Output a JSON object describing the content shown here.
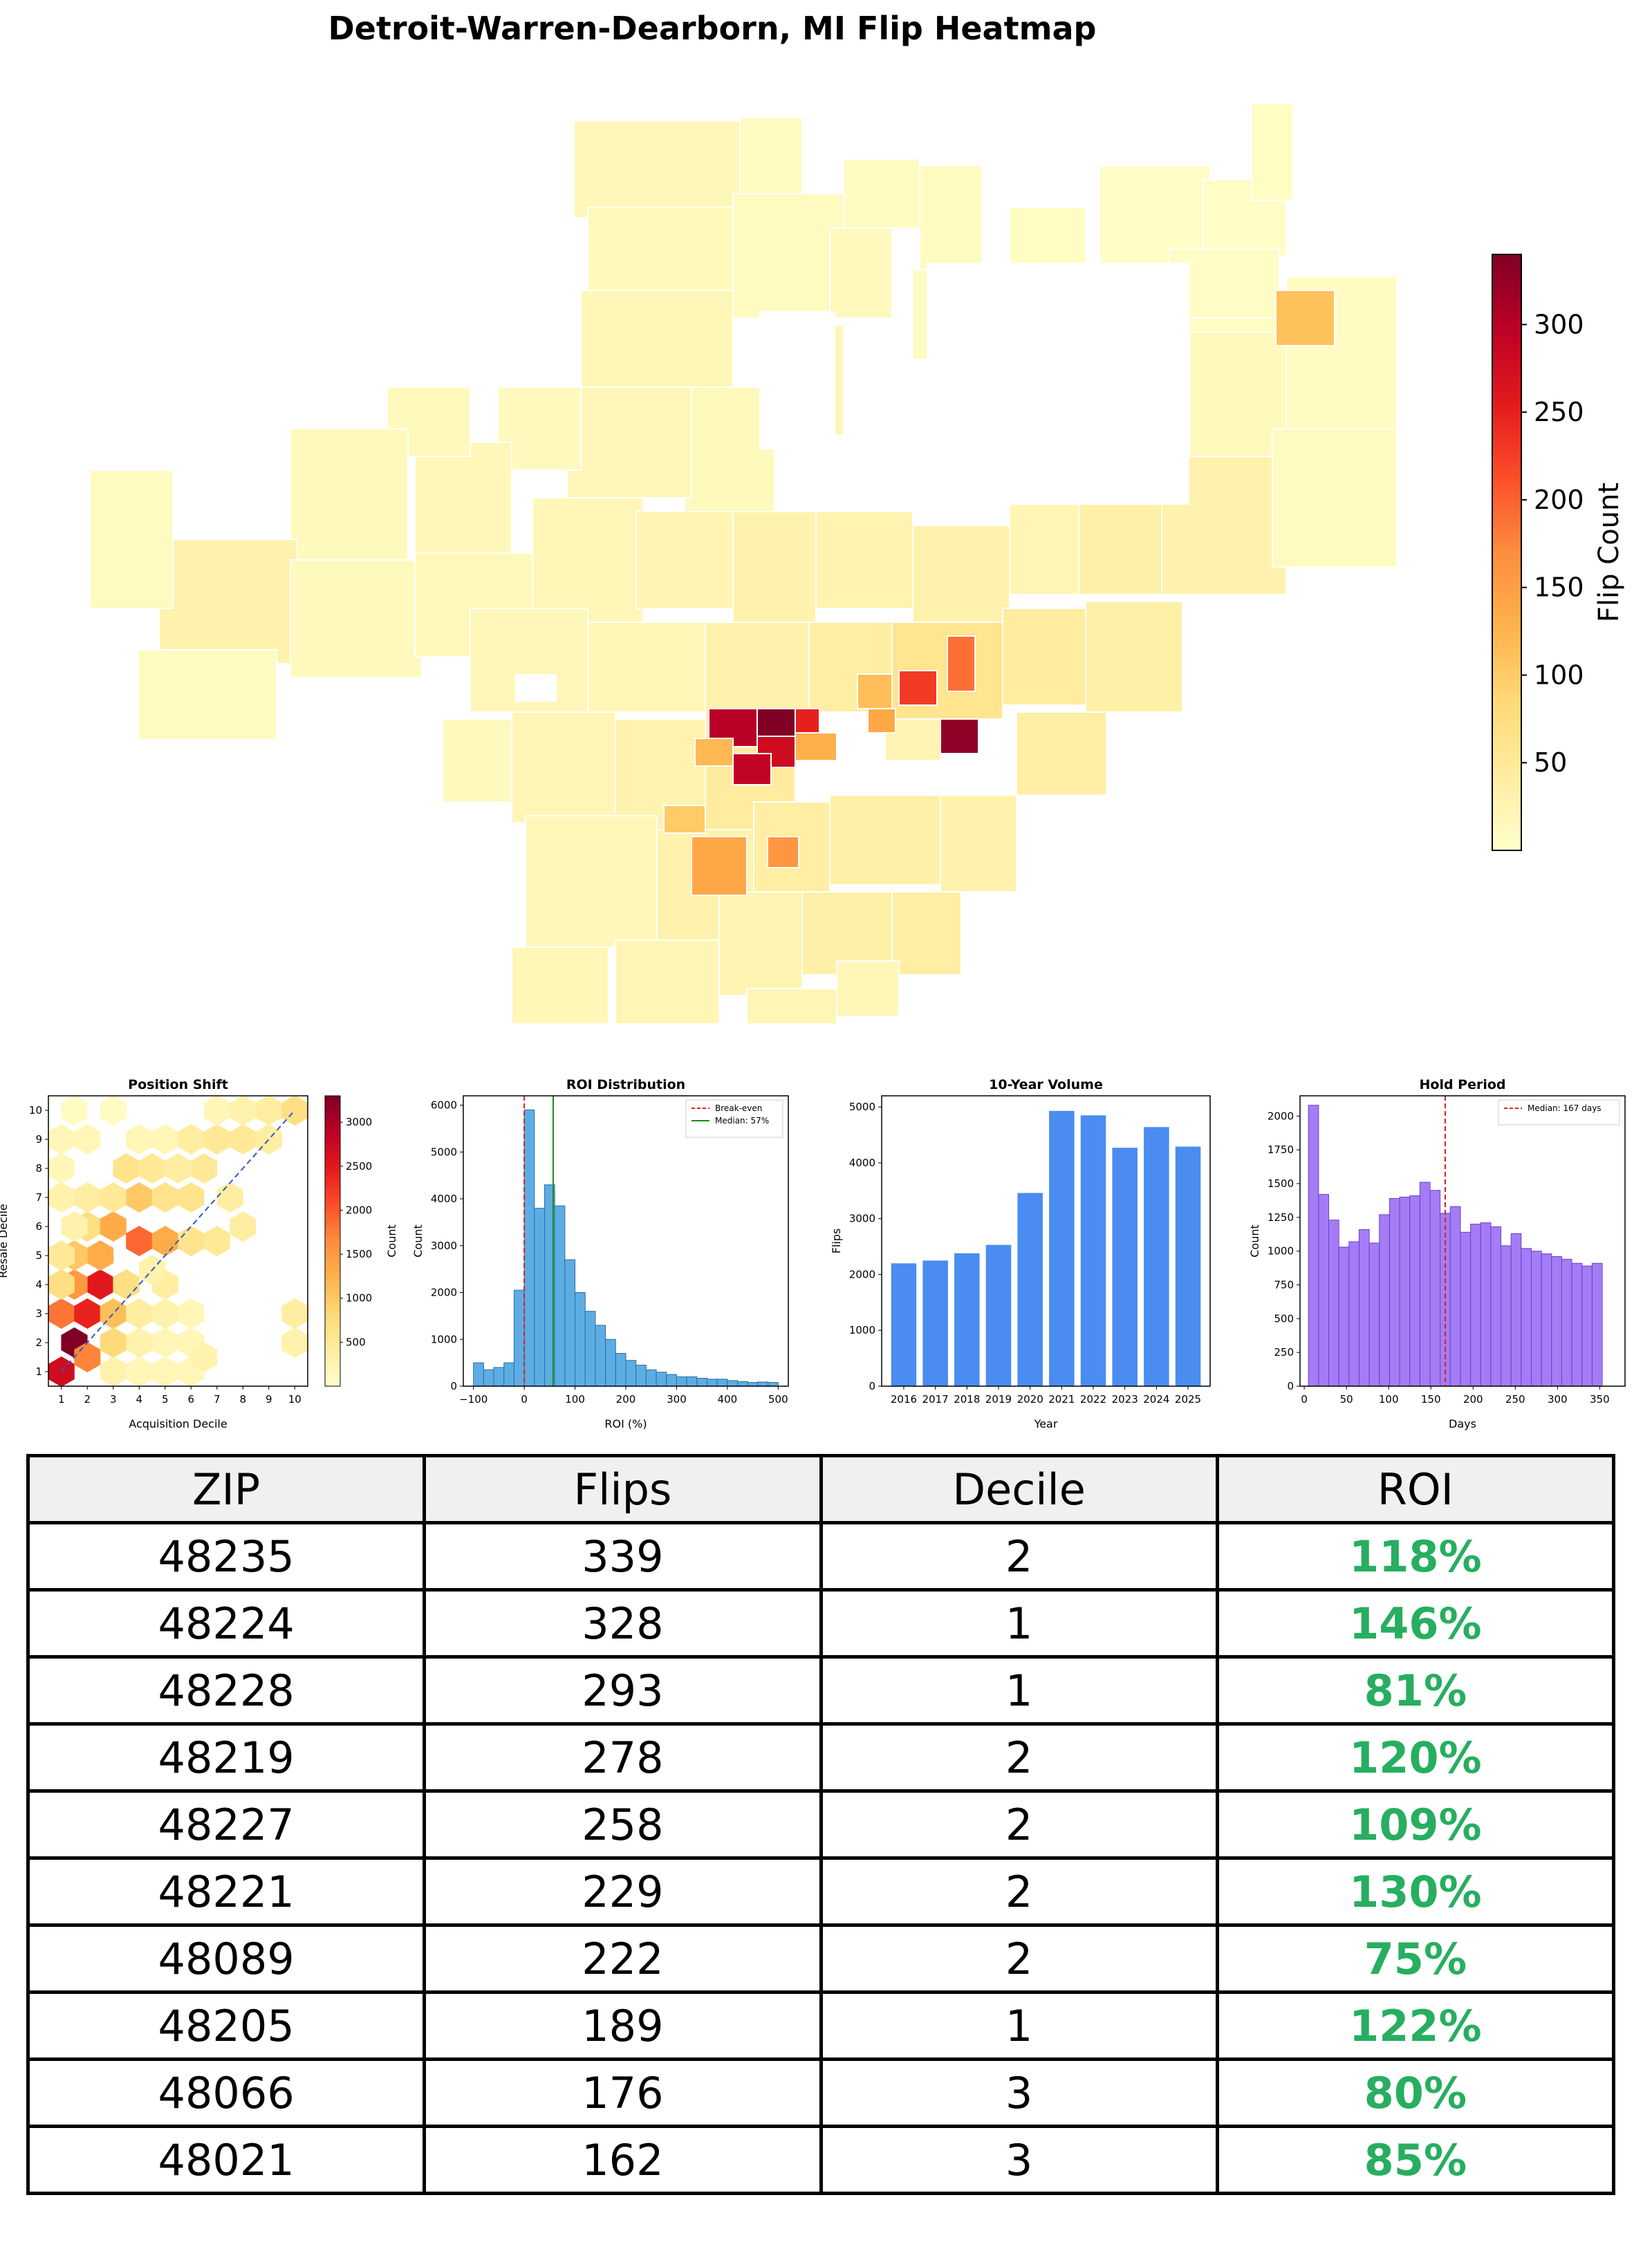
{
  "title": "Detroit-Warren-Dearborn, MI Flip Heatmap",
  "colorbar": {
    "label": "Flip Count",
    "ticks": [
      50,
      100,
      150,
      200,
      250,
      300
    ],
    "range": [
      0,
      340
    ]
  },
  "colors": {
    "low": "#ffffcc",
    "mid": "#fd8d3c",
    "high": "#800026",
    "bar_blue": "#4a8cf0",
    "roi_green": "#27ae60",
    "hist_blue": "#5dade2",
    "hold_purple": "#a47cf5"
  },
  "chart_data": [
    {
      "type": "heatmap",
      "subtype": "hexbin",
      "title": "Position Shift",
      "xlabel": "Acquisition Decile",
      "ylabel": "Resale Decile",
      "xlim": [
        0.5,
        10.5
      ],
      "ylim": [
        0.5,
        10.5
      ],
      "xticks": [
        "1",
        "2",
        "3",
        "4",
        "5",
        "6",
        "7",
        "8",
        "9",
        "10"
      ],
      "yticks": [
        "1",
        "2",
        "3",
        "4",
        "5",
        "6",
        "7",
        "8",
        "9",
        "10"
      ],
      "colorbar_label": "Count",
      "colorbar_ticks": [
        500,
        1000,
        1500,
        2000,
        2500,
        3000
      ],
      "colorbar_range": [
        0,
        3300
      ],
      "diagonal": "y = x",
      "cells": [
        {
          "x": 1,
          "y": 1,
          "count": 2700
        },
        {
          "x": 1.5,
          "y": 2,
          "count": 3300
        },
        {
          "x": 2,
          "y": 1.5,
          "count": 1700
        },
        {
          "x": 1,
          "y": 3,
          "count": 1800
        },
        {
          "x": 2,
          "y": 3,
          "count": 2400
        },
        {
          "x": 2.5,
          "y": 4,
          "count": 2500
        },
        {
          "x": 1.5,
          "y": 4,
          "count": 1500
        },
        {
          "x": 2.5,
          "y": 5,
          "count": 1300
        },
        {
          "x": 1.5,
          "y": 5,
          "count": 1000
        },
        {
          "x": 3,
          "y": 3,
          "count": 1100
        },
        {
          "x": 3.5,
          "y": 4,
          "count": 700
        },
        {
          "x": 3,
          "y": 2,
          "count": 800
        },
        {
          "x": 2,
          "y": 6,
          "count": 700
        },
        {
          "x": 3,
          "y": 6,
          "count": 1300
        },
        {
          "x": 1,
          "y": 5,
          "count": 500
        },
        {
          "x": 1,
          "y": 4,
          "count": 700
        },
        {
          "x": 4,
          "y": 5.5,
          "count": 1900
        },
        {
          "x": 5,
          "y": 5.5,
          "count": 1300
        },
        {
          "x": 6,
          "y": 5.5,
          "count": 600
        },
        {
          "x": 7,
          "y": 5.5,
          "count": 500
        },
        {
          "x": 4,
          "y": 7,
          "count": 1000
        },
        {
          "x": 5,
          "y": 7,
          "count": 600
        },
        {
          "x": 6,
          "y": 7,
          "count": 600
        },
        {
          "x": 3,
          "y": 7,
          "count": 500
        },
        {
          "x": 2,
          "y": 7,
          "count": 400
        },
        {
          "x": 3.5,
          "y": 8,
          "count": 600
        },
        {
          "x": 4.5,
          "y": 8,
          "count": 500
        },
        {
          "x": 6.5,
          "y": 8,
          "count": 500
        },
        {
          "x": 5.5,
          "y": 8,
          "count": 400
        },
        {
          "x": 7,
          "y": 9,
          "count": 500
        },
        {
          "x": 8,
          "y": 9,
          "count": 500
        },
        {
          "x": 6,
          "y": 9,
          "count": 400
        },
        {
          "x": 9,
          "y": 9,
          "count": 400
        },
        {
          "x": 10,
          "y": 10,
          "count": 700
        },
        {
          "x": 9,
          "y": 10,
          "count": 400
        },
        {
          "x": 8,
          "y": 10,
          "count": 300
        },
        {
          "x": 7.5,
          "y": 7,
          "count": 400
        },
        {
          "x": 8,
          "y": 6,
          "count": 400
        },
        {
          "x": 2,
          "y": 9,
          "count": 200
        },
        {
          "x": 1,
          "y": 9,
          "count": 200
        },
        {
          "x": 1.5,
          "y": 10,
          "count": 100
        },
        {
          "x": 3,
          "y": 10,
          "count": 100
        },
        {
          "x": 4,
          "y": 9,
          "count": 200
        },
        {
          "x": 5,
          "y": 9,
          "count": 200
        },
        {
          "x": 7,
          "y": 10,
          "count": 200
        },
        {
          "x": 1,
          "y": 8,
          "count": 200
        },
        {
          "x": 1,
          "y": 7,
          "count": 300
        },
        {
          "x": 1.5,
          "y": 6,
          "count": 300
        },
        {
          "x": 3,
          "y": 1,
          "count": 300
        },
        {
          "x": 4,
          "y": 1,
          "count": 200
        },
        {
          "x": 5,
          "y": 1,
          "count": 200
        },
        {
          "x": 6,
          "y": 1,
          "count": 200
        },
        {
          "x": 4,
          "y": 2,
          "count": 300
        },
        {
          "x": 5,
          "y": 2,
          "count": 200
        },
        {
          "x": 6,
          "y": 2,
          "count": 200
        },
        {
          "x": 6.5,
          "y": 1.5,
          "count": 300
        },
        {
          "x": 4,
          "y": 3,
          "count": 400
        },
        {
          "x": 5,
          "y": 3,
          "count": 300
        },
        {
          "x": 5,
          "y": 4,
          "count": 400
        },
        {
          "x": 4.5,
          "y": 4.5,
          "count": 300
        },
        {
          "x": 10,
          "y": 2,
          "count": 300
        },
        {
          "x": 10,
          "y": 3,
          "count": 400
        },
        {
          "x": 6,
          "y": 3,
          "count": 200
        }
      ]
    },
    {
      "type": "bar",
      "subtype": "histogram",
      "title": "ROI Distribution",
      "xlabel": "ROI (%)",
      "ylabel": "Count",
      "xlim": [
        -120,
        520
      ],
      "ylim": [
        0,
        6200
      ],
      "xticks": [
        -100,
        0,
        100,
        200,
        300,
        400,
        500
      ],
      "yticks": [
        0,
        1000,
        2000,
        3000,
        4000,
        5000,
        6000
      ],
      "bin_width": 20,
      "bin_start": -100,
      "values": [
        500,
        350,
        400,
        500,
        2050,
        5900,
        3800,
        4300,
        3850,
        2700,
        2000,
        1600,
        1300,
        1000,
        700,
        550,
        450,
        350,
        300,
        250,
        200,
        200,
        170,
        150,
        150,
        120,
        100,
        80,
        90,
        80
      ],
      "vlines": [
        {
          "x": 0,
          "label": "Break-even",
          "color": "#e41a1c",
          "style": "dashed"
        },
        {
          "x": 57,
          "label": "Median: 57%",
          "color": "#1a8a1a",
          "style": "solid"
        }
      ]
    },
    {
      "type": "bar",
      "title": "10-Year Volume",
      "xlabel": "Year",
      "ylabel": "Flips",
      "categories": [
        "2016",
        "2017",
        "2018",
        "2019",
        "2020",
        "2021",
        "2022",
        "2023",
        "2024",
        "2025"
      ],
      "values": [
        2200,
        2250,
        2380,
        2530,
        3460,
        4930,
        4850,
        4270,
        4640,
        4290
      ],
      "ylim": [
        0,
        5200
      ],
      "yticks": [
        0,
        1000,
        2000,
        3000,
        4000,
        5000
      ]
    },
    {
      "type": "bar",
      "subtype": "histogram",
      "title": "Hold Period",
      "xlabel": "Days",
      "ylabel": "Count",
      "xlim": [
        -5,
        380
      ],
      "ylim": [
        0,
        2150
      ],
      "xticks": [
        0,
        50,
        100,
        150,
        200,
        250,
        300,
        350
      ],
      "yticks": [
        0,
        250,
        500,
        750,
        1000,
        1250,
        1500,
        1750,
        2000
      ],
      "bin_width": 12,
      "bin_start": 5,
      "values": [
        2080,
        1420,
        1230,
        1030,
        1070,
        1160,
        1060,
        1270,
        1390,
        1400,
        1410,
        1510,
        1450,
        1280,
        1330,
        1140,
        1200,
        1210,
        1180,
        1040,
        1130,
        1020,
        1000,
        980,
        960,
        940,
        910,
        890,
        910
      ],
      "vlines": [
        {
          "x": 167,
          "label": "Median: 167 days",
          "color": "#e41a1c",
          "style": "dashed"
        }
      ]
    },
    {
      "type": "table",
      "columns": [
        "ZIP",
        "Flips",
        "Decile",
        "ROI"
      ],
      "rows": [
        [
          "48235",
          "339",
          "2",
          "118%"
        ],
        [
          "48224",
          "328",
          "1",
          "146%"
        ],
        [
          "48228",
          "293",
          "1",
          "81%"
        ],
        [
          "48219",
          "278",
          "2",
          "120%"
        ],
        [
          "48227",
          "258",
          "2",
          "109%"
        ],
        [
          "48221",
          "229",
          "2",
          "130%"
        ],
        [
          "48089",
          "222",
          "2",
          "75%"
        ],
        [
          "48205",
          "189",
          "1",
          "122%"
        ],
        [
          "48066",
          "176",
          "3",
          "80%"
        ],
        [
          "48021",
          "162",
          "3",
          "85%"
        ]
      ]
    }
  ]
}
